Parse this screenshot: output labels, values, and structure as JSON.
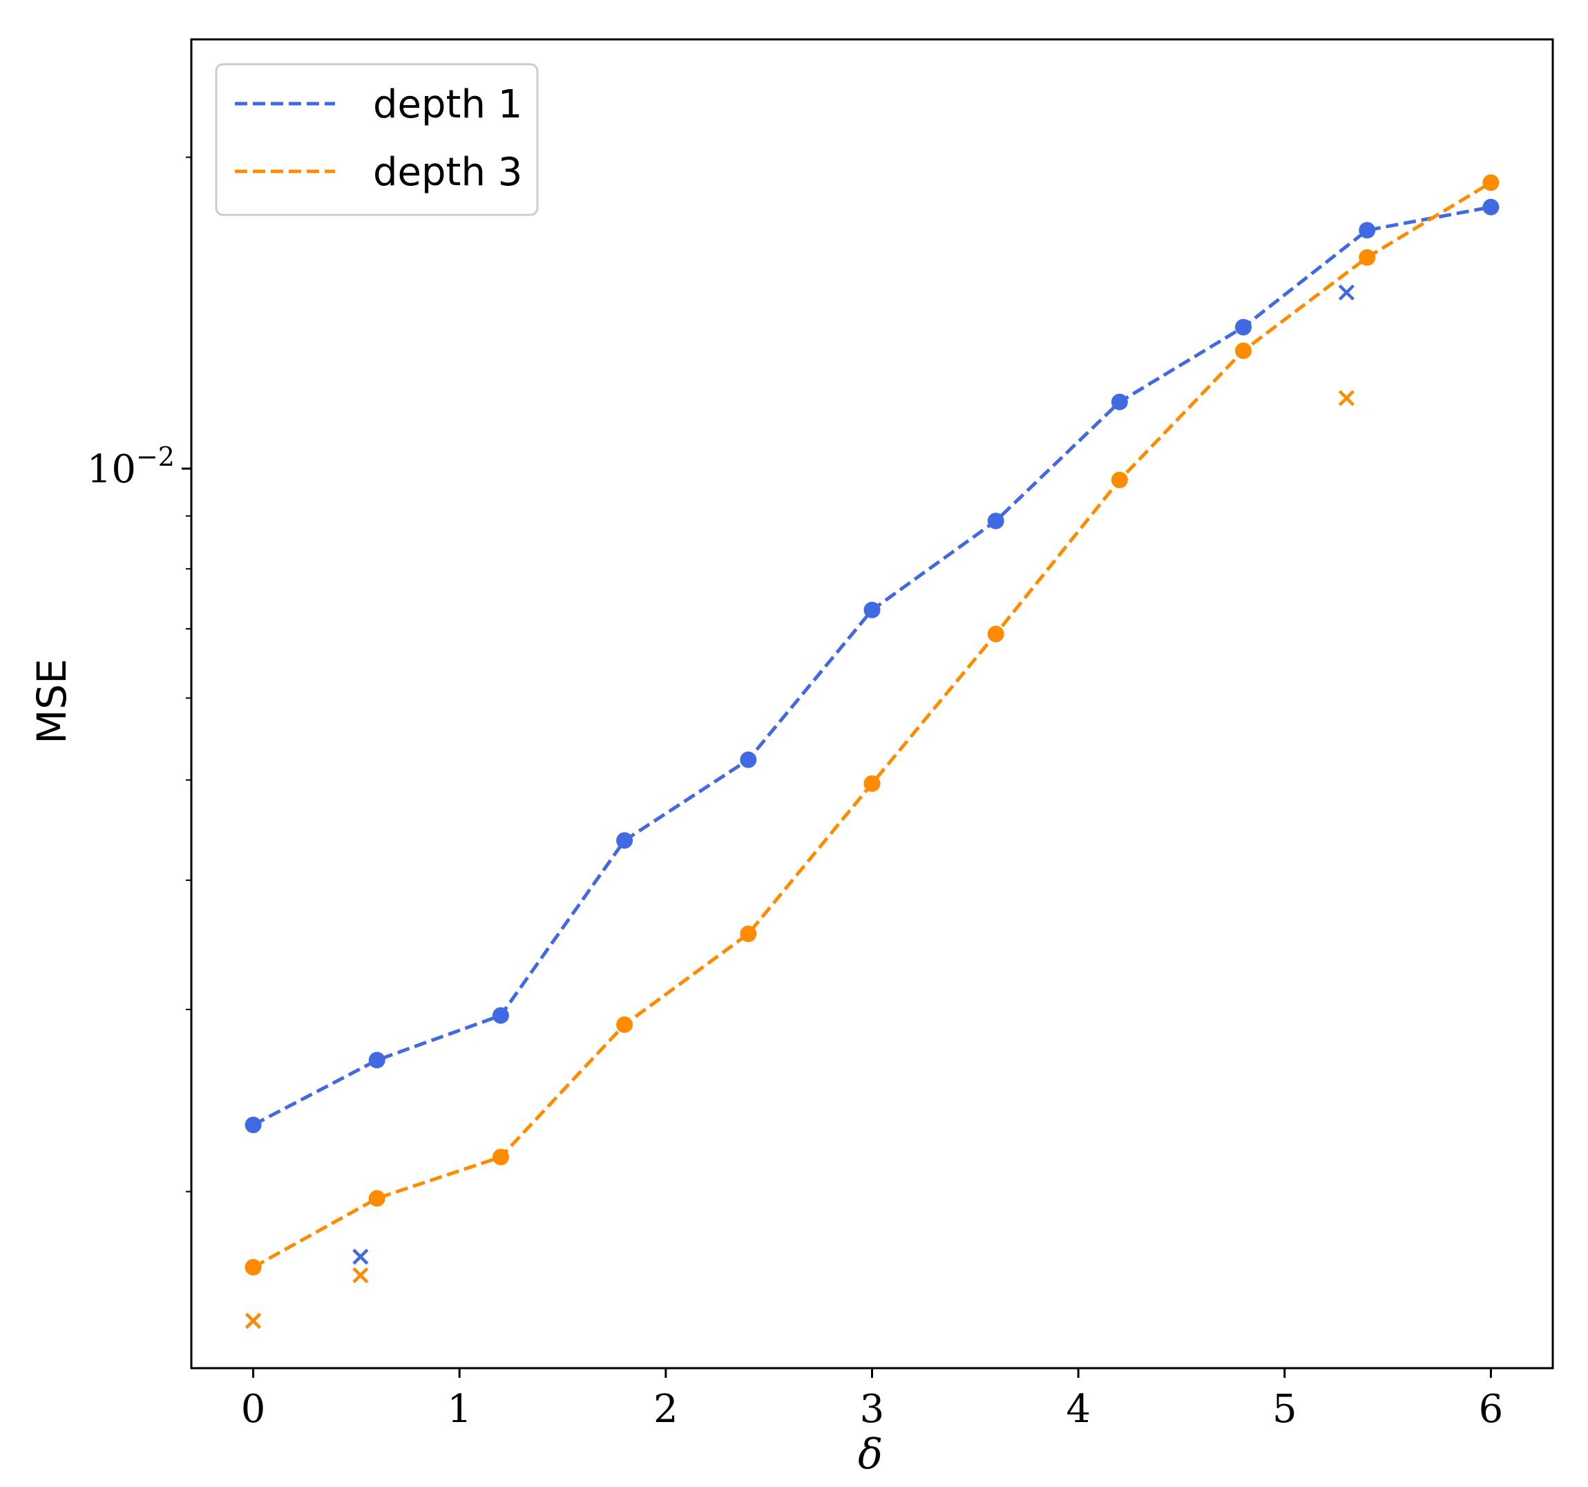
{
  "chart_data": {
    "type": "line",
    "xlabel": "δ",
    "ylabel": "MSE",
    "x_scale": "linear",
    "y_scale": "log",
    "xlim": [
      -0.3,
      6.3
    ],
    "ylim": [
      0.00135,
      0.026
    ],
    "x_ticks": [
      0,
      1,
      2,
      3,
      4,
      5,
      6
    ],
    "x_tick_labels": [
      "0",
      "1",
      "2",
      "3",
      "4",
      "5",
      "6"
    ],
    "y_major_tick_label": {
      "base": "10",
      "exponent": "−2",
      "value": 0.01
    },
    "grid": false,
    "legend": {
      "position": "top-left"
    },
    "series": [
      {
        "name": "depth 1",
        "color": "#4169E1",
        "style": "dashed",
        "marker": "circle",
        "x": [
          0,
          0.6,
          1.2,
          1.8,
          2.4,
          3.0,
          3.6,
          4.2,
          4.8,
          5.4,
          6.0
        ],
        "y": [
          0.00232,
          0.00268,
          0.00296,
          0.00437,
          0.00523,
          0.0073,
          0.0089,
          0.0116,
          0.0137,
          0.017,
          0.0179
        ]
      },
      {
        "name": "depth 3",
        "color": "#FF8C00",
        "style": "dashed",
        "marker": "circle",
        "x": [
          0,
          0.6,
          1.2,
          1.8,
          2.4,
          3.0,
          3.6,
          4.2,
          4.8,
          5.4,
          6.0
        ],
        "y": [
          0.00169,
          0.00197,
          0.00216,
          0.0029,
          0.00355,
          0.00496,
          0.00692,
          0.00975,
          0.013,
          0.016,
          0.0189
        ]
      }
    ],
    "extra_points": [
      {
        "series": "depth 1",
        "marker": "x",
        "color": "#4169E1",
        "points": [
          [
            0,
            0.0015
          ],
          [
            0.52,
            0.00173
          ],
          [
            5.3,
            0.0148
          ]
        ]
      },
      {
        "series": "depth 3",
        "marker": "x",
        "color": "#FF8C00",
        "points": [
          [
            0,
            0.0015
          ],
          [
            0.52,
            0.00166
          ],
          [
            5.3,
            0.0117
          ]
        ]
      }
    ]
  }
}
